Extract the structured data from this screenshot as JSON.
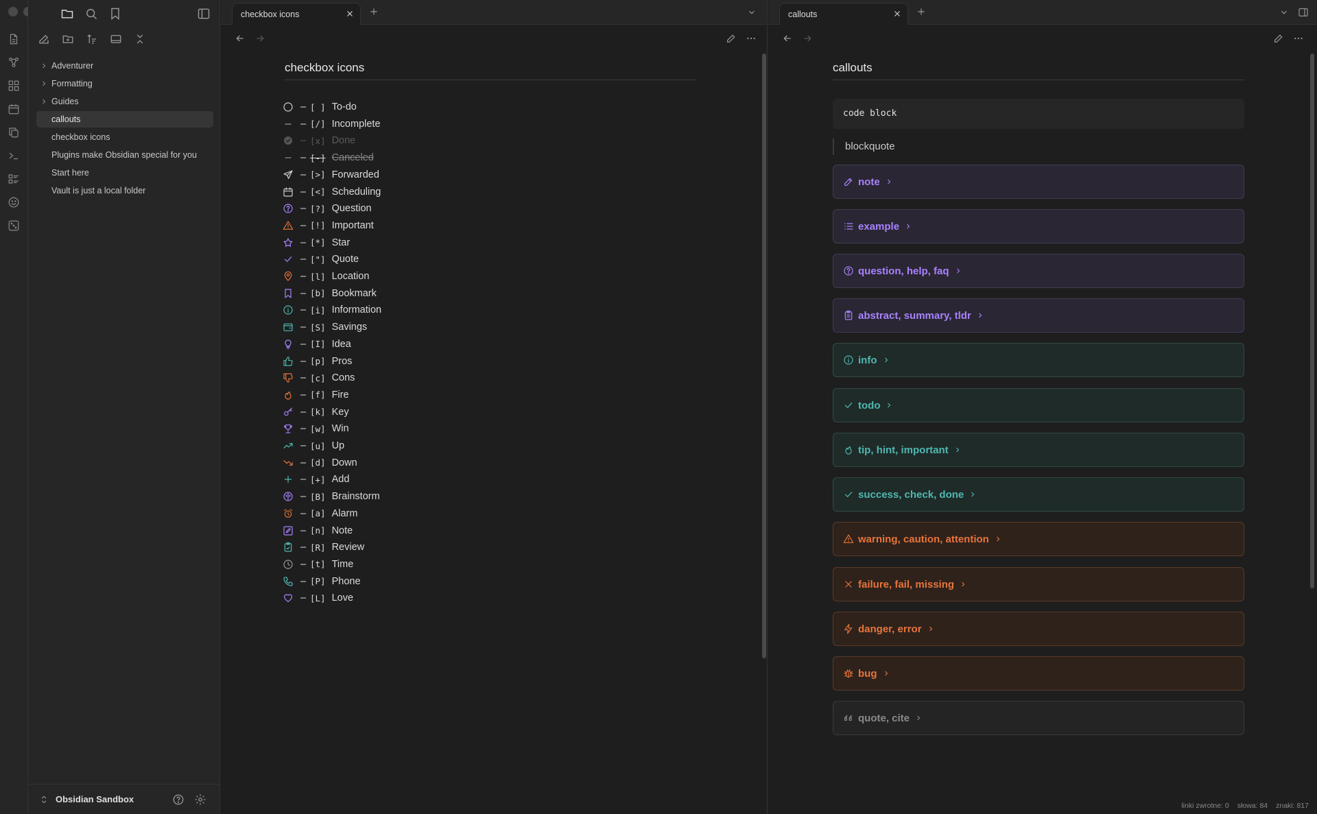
{
  "sidebar": {
    "tree": [
      {
        "label": "Adventurer",
        "folder": true
      },
      {
        "label": "Formatting",
        "folder": true
      },
      {
        "label": "Guides",
        "folder": true
      },
      {
        "label": "callouts",
        "folder": false,
        "active": true
      },
      {
        "label": "checkbox icons",
        "folder": false
      },
      {
        "label": "Plugins make Obsidian special for you",
        "folder": false
      },
      {
        "label": "Start here",
        "folder": false
      },
      {
        "label": "Vault is just a local folder",
        "folder": false
      }
    ],
    "vault_name": "Obsidian Sandbox"
  },
  "left_pane": {
    "tab_title": "checkbox icons",
    "doc_title": "checkbox icons",
    "items": [
      {
        "code": "[ ]",
        "label": "To-do",
        "icon": "circle-icon",
        "color": "#cfcfcf"
      },
      {
        "code": "[/]",
        "label": "Incomplete",
        "icon": "minus-icon",
        "color": "#9a9a9a"
      },
      {
        "code": "[x]",
        "label": "Done",
        "icon": "check-circle-icon",
        "color": "#555555",
        "state": "dim"
      },
      {
        "code": "[-]",
        "label": "Canceled",
        "icon": "minus-icon",
        "color": "#888888",
        "state": "strike"
      },
      {
        "code": "[>]",
        "label": "Forwarded",
        "icon": "send-icon",
        "color": "#cfcfcf"
      },
      {
        "code": "[<]",
        "label": "Scheduling",
        "icon": "calendar-icon",
        "color": "#cfcfcf"
      },
      {
        "code": "[?]",
        "label": "Question",
        "icon": "help-circle-icon",
        "color": "#a882ff"
      },
      {
        "code": "[!]",
        "label": "Important",
        "icon": "alert-triangle-icon",
        "color": "#e8743b"
      },
      {
        "code": "[*]",
        "label": "Star",
        "icon": "star-icon",
        "color": "#a882ff"
      },
      {
        "code": "[\"]",
        "label": "Quote",
        "icon": "check-icon",
        "color": "#a882ff"
      },
      {
        "code": "[l]",
        "label": "Location",
        "icon": "map-pin-icon",
        "color": "#e8743b"
      },
      {
        "code": "[b]",
        "label": "Bookmark",
        "icon": "bookmark-icon",
        "color": "#a882ff"
      },
      {
        "code": "[i]",
        "label": "Information",
        "icon": "info-icon",
        "color": "#4fb8b0"
      },
      {
        "code": "[S]",
        "label": "Savings",
        "icon": "wallet-icon",
        "color": "#4fb8b0"
      },
      {
        "code": "[I]",
        "label": "Idea",
        "icon": "lightbulb-icon",
        "color": "#a882ff"
      },
      {
        "code": "[p]",
        "label": "Pros",
        "icon": "thumbs-up-icon",
        "color": "#4fb8b0"
      },
      {
        "code": "[c]",
        "label": "Cons",
        "icon": "thumbs-down-icon",
        "color": "#e8743b"
      },
      {
        "code": "[f]",
        "label": "Fire",
        "icon": "flame-icon",
        "color": "#e8743b"
      },
      {
        "code": "[k]",
        "label": "Key",
        "icon": "key-icon",
        "color": "#a882ff"
      },
      {
        "code": "[w]",
        "label": "Win",
        "icon": "trophy-icon",
        "color": "#a882ff"
      },
      {
        "code": "[u]",
        "label": "Up",
        "icon": "trending-up-icon",
        "color": "#4fb8b0"
      },
      {
        "code": "[d]",
        "label": "Down",
        "icon": "trending-down-icon",
        "color": "#e8743b"
      },
      {
        "code": "[+]",
        "label": "Add",
        "icon": "plus-icon",
        "color": "#4fb8b0"
      },
      {
        "code": "[B]",
        "label": "Brainstorm",
        "icon": "brain-icon",
        "color": "#a882ff"
      },
      {
        "code": "[a]",
        "label": "Alarm",
        "icon": "alarm-icon",
        "color": "#e8743b"
      },
      {
        "code": "[n]",
        "label": "Note",
        "icon": "edit-icon",
        "color": "#a882ff"
      },
      {
        "code": "[R]",
        "label": "Review",
        "icon": "clipboard-icon",
        "color": "#4fb8b0"
      },
      {
        "code": "[t]",
        "label": "Time",
        "icon": "clock-icon",
        "color": "#9a9a9a"
      },
      {
        "code": "[P]",
        "label": "Phone",
        "icon": "phone-icon",
        "color": "#4fb8b0"
      },
      {
        "code": "[L]",
        "label": "Love",
        "icon": "heart-icon",
        "color": "#a882ff"
      }
    ]
  },
  "right_pane": {
    "tab_title": "callouts",
    "doc_title": "callouts",
    "code_block": "code block",
    "blockquote": "blockquote",
    "callouts": [
      {
        "title": "note",
        "icon": "pencil-icon",
        "color": "#a882ff",
        "bg": "#2a2633",
        "border": "#423a55"
      },
      {
        "title": "example",
        "icon": "list-icon",
        "color": "#a882ff",
        "bg": "#2a2633",
        "border": "#423a55"
      },
      {
        "title": "question, help, faq",
        "icon": "help-circle-icon",
        "color": "#a882ff",
        "bg": "#2a2633",
        "border": "#423a55"
      },
      {
        "title": "abstract, summary, tldr",
        "icon": "clipboard-list-icon",
        "color": "#a882ff",
        "bg": "#2a2633",
        "border": "#423a55"
      },
      {
        "title": "info",
        "icon": "info-icon",
        "color": "#4fb8b0",
        "bg": "#1f2b29",
        "border": "#2f4a46"
      },
      {
        "title": "todo",
        "icon": "check-icon",
        "color": "#4fb8b0",
        "bg": "#1f2b29",
        "border": "#2f4a46"
      },
      {
        "title": "tip, hint, important",
        "icon": "flame-icon",
        "color": "#4fb8b0",
        "bg": "#1f2b29",
        "border": "#2f4a46"
      },
      {
        "title": "success, check, done",
        "icon": "check-icon",
        "color": "#4fb8b0",
        "bg": "#1f2b29",
        "border": "#2f4a46"
      },
      {
        "title": "warning, caution, attention",
        "icon": "alert-triangle-icon",
        "color": "#e8743b",
        "bg": "#2e221b",
        "border": "#5a3a28"
      },
      {
        "title": "failure, fail, missing",
        "icon": "x-icon",
        "color": "#e8743b",
        "bg": "#2e221b",
        "border": "#5a3a28"
      },
      {
        "title": "danger, error",
        "icon": "zap-icon",
        "color": "#e8743b",
        "bg": "#2e221b",
        "border": "#5a3a28"
      },
      {
        "title": "bug",
        "icon": "bug-icon",
        "color": "#e8743b",
        "bg": "#2e221b",
        "border": "#5a3a28"
      },
      {
        "title": "quote, cite",
        "icon": "quote-icon",
        "color": "#8a8a8a",
        "bg": "#242424",
        "border": "#3a3a3a"
      }
    ]
  },
  "status": {
    "backlinks": "linki zwrotne: 0",
    "words": "słowa: 84",
    "chars": "znaki: 817"
  }
}
